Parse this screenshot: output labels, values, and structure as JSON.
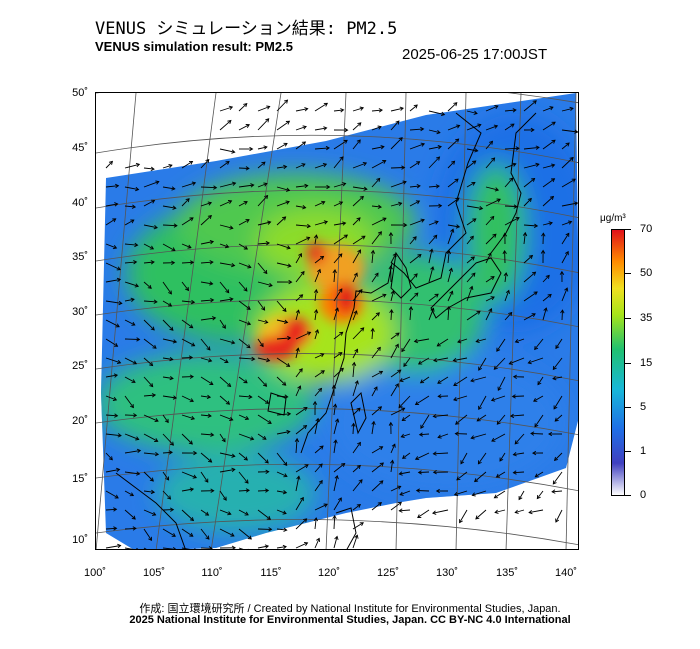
{
  "header": {
    "title_jp": "VENUS シミュレーション結果: PM2.5",
    "title_en": "VENUS simulation result: PM2.5",
    "timestamp": "2025-06-25 17:00JST"
  },
  "map": {
    "lat_ticks": [
      "50˚",
      "45˚",
      "40˚",
      "35˚",
      "30˚",
      "25˚",
      "20˚",
      "15˚",
      "10˚"
    ],
    "lon_ticks": [
      "100˚",
      "105˚",
      "110˚",
      "115˚",
      "120˚",
      "125˚",
      "130˚",
      "135˚",
      "140˚"
    ],
    "field": "PM2.5 concentration with wind vectors"
  },
  "colorbar": {
    "unit": "μg/m³",
    "labels": [
      "70",
      "50",
      "35",
      "15",
      "5",
      "1",
      "0"
    ],
    "colors": [
      "#e0101a",
      "#ff8c00",
      "#f0e020",
      "#a6e41a",
      "#20c070",
      "#18b8d8",
      "#1f6fe6",
      "#4040c0",
      "#ffffff"
    ]
  },
  "footer": {
    "credit_jp": "作成: 国立環境研究所 / Created by National Institute for Environmental Studies, Japan.",
    "credit_en": "2025 National Institute for Environmental Studies, Japan. CC BY-NC 4.0 International"
  }
}
